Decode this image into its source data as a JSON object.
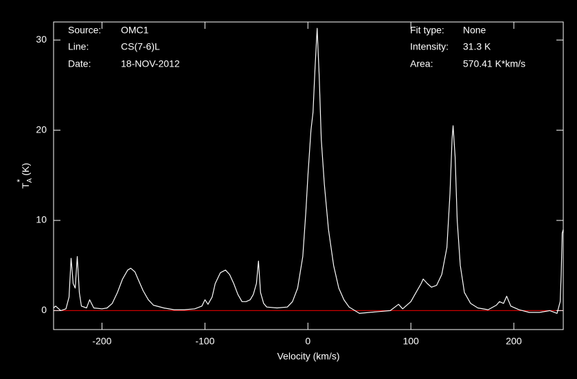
{
  "chart_data": {
    "type": "line",
    "xlabel": "Velocity (km/s)",
    "ylabel": {
      "symbol": "T",
      "sup": "*",
      "sub": "A",
      "unit": "(K)"
    },
    "annotations_left": [
      [
        "Source:",
        "OMC1"
      ],
      [
        "Line:",
        "CS(7-6)L"
      ],
      [
        "Date:",
        "18-NOV-2012"
      ]
    ],
    "annotations_right": [
      [
        "Fit type:",
        "None"
      ],
      [
        "Intensity:",
        "31.3 K"
      ],
      [
        "Area:",
        "570.41 K*km/s"
      ]
    ],
    "xlim": [
      -247,
      248
    ],
    "ylim": [
      -2.1,
      32
    ],
    "xticks": [
      -200,
      -100,
      0,
      100,
      200
    ],
    "yticks": [
      0,
      10,
      20,
      30
    ],
    "color": "#ffffff",
    "baseline_color": "#cc0000",
    "series": [
      {
        "name": "OMC1 CS(7-6)L",
        "x": [
          -247,
          -245,
          -240,
          -235,
          -232,
          -230,
          -228,
          -226,
          -224,
          -222,
          -220,
          -215,
          -212,
          -208,
          -200,
          -195,
          -190,
          -185,
          -180,
          -175,
          -172,
          -168,
          -165,
          -160,
          -155,
          -150,
          -140,
          -130,
          -120,
          -110,
          -103,
          -100,
          -97,
          -93,
          -90,
          -85,
          -80,
          -76,
          -72,
          -68,
          -64,
          -60,
          -56,
          -53,
          -50,
          -48,
          -46,
          -43,
          -40,
          -30,
          -20,
          -15,
          -10,
          -5,
          -2,
          0,
          3,
          5,
          7,
          9,
          11,
          13,
          16,
          20,
          25,
          30,
          35,
          40,
          50,
          60,
          70,
          80,
          88,
          92,
          100,
          105,
          110,
          112,
          116,
          120,
          125,
          130,
          135,
          138,
          140,
          141,
          143,
          145,
          148,
          152,
          158,
          165,
          175,
          183,
          186,
          190,
          193,
          197,
          205,
          215,
          225,
          235,
          242,
          245,
          246,
          247,
          248
        ],
        "values": [
          0.3,
          0.5,
          0,
          0.2,
          1.5,
          5.8,
          3,
          2.5,
          6.0,
          2,
          0.5,
          0.3,
          1.2,
          0.3,
          0.2,
          0.3,
          0.8,
          2,
          3.5,
          4.5,
          4.7,
          4.3,
          3.5,
          2.2,
          1.2,
          0.6,
          0.3,
          0.1,
          0.1,
          0.2,
          0.5,
          1.2,
          0.7,
          1.5,
          3,
          4.2,
          4.5,
          4.0,
          3,
          1.8,
          1.0,
          1.0,
          1.2,
          1.8,
          3,
          5.5,
          2,
          0.8,
          0.4,
          0.3,
          0.4,
          1.0,
          2.5,
          6,
          11,
          15,
          20,
          22,
          27,
          31.3,
          26,
          19,
          14,
          9,
          5,
          2.5,
          1.2,
          0.4,
          -0.3,
          -0.2,
          -0.1,
          0,
          0.7,
          0.2,
          1.0,
          2,
          3.0,
          3.5,
          3,
          2.6,
          2.8,
          4,
          7,
          13,
          19,
          20.5,
          17,
          10,
          5,
          2,
          0.8,
          0.3,
          0.1,
          0.6,
          1,
          0.8,
          1.6,
          0.5,
          0.1,
          -0.2,
          -0.2,
          0,
          -0.3,
          1,
          4,
          8.6,
          9
        ]
      }
    ]
  }
}
